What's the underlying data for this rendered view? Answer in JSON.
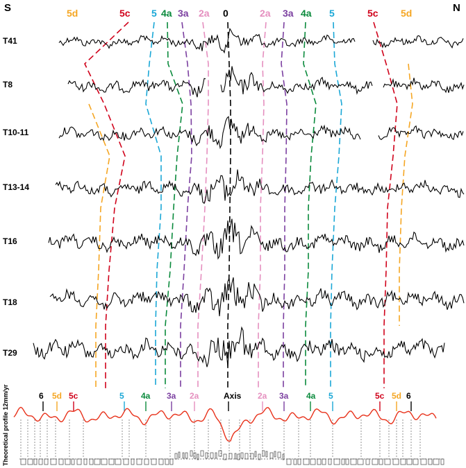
{
  "header": {
    "left": "S",
    "right": "N",
    "top_labels": [
      {
        "text": "5d",
        "color": "#f5a623"
      },
      {
        "text": "5c",
        "color": "#d0021b"
      },
      {
        "text": "5",
        "color": "#1aa7d6"
      },
      {
        "text": "4a",
        "color": "#0a8a3c"
      },
      {
        "text": "3a",
        "color": "#7b3fa0"
      },
      {
        "text": "2a",
        "color": "#e58fbf"
      },
      {
        "text": "0",
        "color": "#000000"
      },
      {
        "text": "2a",
        "color": "#e58fbf"
      },
      {
        "text": "3a",
        "color": "#7b3fa0"
      },
      {
        "text": "4a",
        "color": "#0a8a3c"
      },
      {
        "text": "5",
        "color": "#1aa7d6"
      },
      {
        "text": "5c",
        "color": "#d0021b"
      },
      {
        "text": "5d",
        "color": "#f5a623"
      }
    ]
  },
  "profiles": [
    "T41",
    "T8",
    "T10-11",
    "T13-14",
    "T16",
    "T18",
    "T29"
  ],
  "theoretical": {
    "axis_label": "Theoretical profile 12mm/yr",
    "labels": [
      {
        "text": "6",
        "color": "#000000"
      },
      {
        "text": "5d",
        "color": "#f5a623"
      },
      {
        "text": "5c",
        "color": "#d0021b"
      },
      {
        "text": "5",
        "color": "#1aa7d6"
      },
      {
        "text": "4a",
        "color": "#0a8a3c"
      },
      {
        "text": "3a",
        "color": "#7b3fa0"
      },
      {
        "text": "2a",
        "color": "#e58fbf"
      },
      {
        "text": "Axis",
        "color": "#000000"
      },
      {
        "text": "2a",
        "color": "#e58fbf"
      },
      {
        "text": "3a",
        "color": "#7b3fa0"
      },
      {
        "text": "4a",
        "color": "#0a8a3c"
      },
      {
        "text": "5",
        "color": "#1aa7d6"
      },
      {
        "text": "5c",
        "color": "#d0021b"
      },
      {
        "text": "5d",
        "color": "#f5a623"
      },
      {
        "text": "6",
        "color": "#000000"
      }
    ]
  },
  "colors": {
    "profile_line": "#000000",
    "theoretical_line": "#e8311a",
    "c5d": "#f5a623",
    "c5c": "#d0021b",
    "c5": "#1aa7d6",
    "c4a": "#0a8a3c",
    "c3a": "#7b3fa0",
    "c2a": "#e58fbf",
    "c0": "#000000"
  }
}
